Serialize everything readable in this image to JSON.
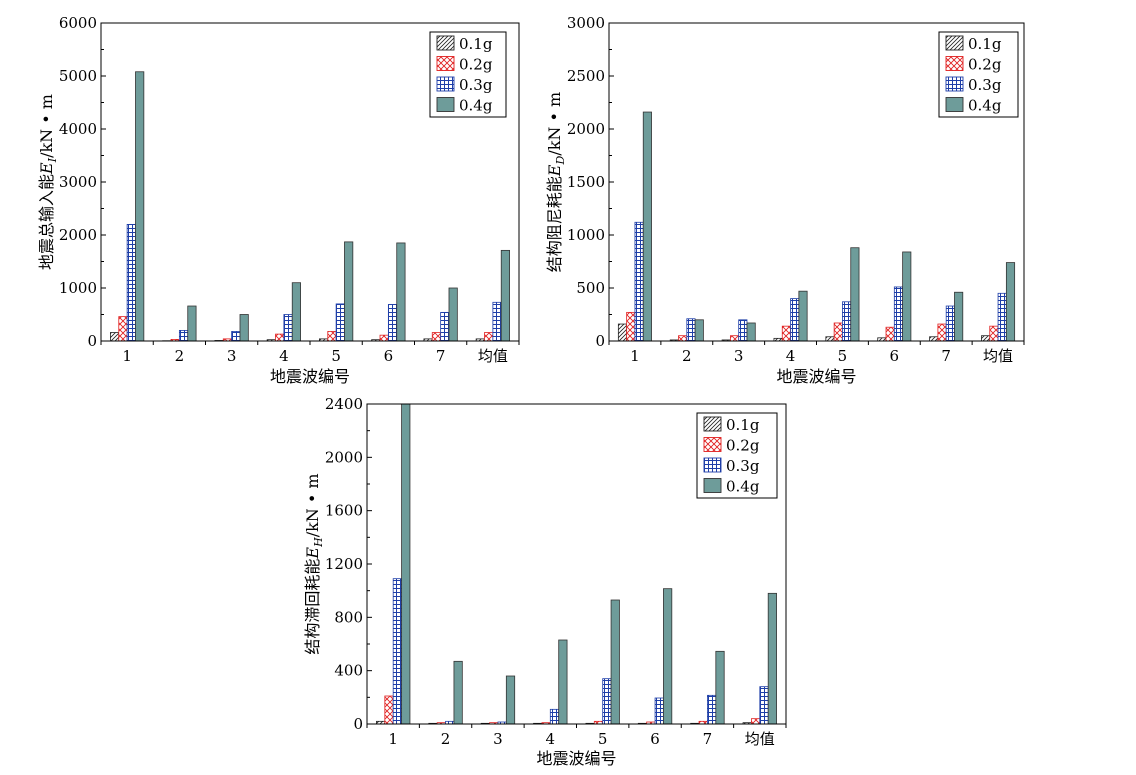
{
  "colors": {
    "s01_stroke": "#222222",
    "s02_stroke": "#e02020",
    "s03_stroke": "#1f3fa8",
    "s04_fill": "#6e9c9a",
    "s04_stroke": "#333333"
  },
  "chart_data": [
    {
      "type": "bar",
      "categories": [
        "1",
        "2",
        "3",
        "4",
        "5",
        "6",
        "7",
        "均值"
      ],
      "xlabel": "地震波编号",
      "ylabel_main": "地震总输入能",
      "ylabel_sym": "E",
      "ylabel_sub": "I",
      "ylabel_unit": "/kN • m",
      "ylim": [
        0,
        6000
      ],
      "yticks": [
        0,
        1000,
        2000,
        3000,
        4000,
        5000,
        6000
      ],
      "legend_position": "top-right",
      "series": [
        {
          "name": "0.1g",
          "values": [
            160,
            5,
            10,
            25,
            40,
            25,
            40,
            40
          ]
        },
        {
          "name": "0.2g",
          "values": [
            460,
            30,
            40,
            130,
            180,
            110,
            160,
            160
          ]
        },
        {
          "name": "0.3g",
          "values": [
            2200,
            200,
            180,
            500,
            700,
            690,
            540,
            730
          ]
        },
        {
          "name": "0.4g",
          "values": [
            5080,
            660,
            500,
            1100,
            1870,
            1850,
            1000,
            1710
          ]
        }
      ]
    },
    {
      "type": "bar",
      "categories": [
        "1",
        "2",
        "3",
        "4",
        "5",
        "6",
        "7",
        "均值"
      ],
      "xlabel": "地震波编号",
      "ylabel_main": "结构阻尼耗能",
      "ylabel_sym": "E",
      "ylabel_sub": "D",
      "ylabel_unit": "/kN • m",
      "ylim": [
        0,
        3000
      ],
      "yticks": [
        0,
        500,
        1000,
        1500,
        2000,
        2500,
        3000
      ],
      "legend_position": "top-right",
      "series": [
        {
          "name": "0.1g",
          "values": [
            160,
            10,
            10,
            25,
            40,
            30,
            40,
            50
          ]
        },
        {
          "name": "0.2g",
          "values": [
            270,
            50,
            50,
            140,
            170,
            130,
            160,
            140
          ]
        },
        {
          "name": "0.3g",
          "values": [
            1120,
            210,
            200,
            400,
            370,
            510,
            330,
            450
          ]
        },
        {
          "name": "0.4g",
          "values": [
            2160,
            200,
            170,
            470,
            880,
            840,
            460,
            740
          ]
        }
      ]
    },
    {
      "type": "bar",
      "categories": [
        "1",
        "2",
        "3",
        "4",
        "5",
        "6",
        "7",
        "均值"
      ],
      "xlabel": "地震波编号",
      "ylabel_main": "结构滞回耗能",
      "ylabel_sym": "E",
      "ylabel_sub": "H",
      "ylabel_unit": "/kN • m",
      "ylim": [
        0,
        2400
      ],
      "yticks": [
        0,
        400,
        800,
        1200,
        1600,
        2000,
        2400
      ],
      "legend_position": "top-right",
      "series": [
        {
          "name": "0.1g",
          "values": [
            20,
            5,
            5,
            5,
            5,
            5,
            5,
            10
          ]
        },
        {
          "name": "0.2g",
          "values": [
            210,
            10,
            10,
            10,
            20,
            15,
            20,
            40
          ]
        },
        {
          "name": "0.3g",
          "values": [
            1090,
            20,
            15,
            110,
            340,
            195,
            215,
            280
          ]
        },
        {
          "name": "0.4g",
          "values": [
            2400,
            470,
            360,
            630,
            930,
            1015,
            545,
            980
          ]
        }
      ]
    }
  ]
}
